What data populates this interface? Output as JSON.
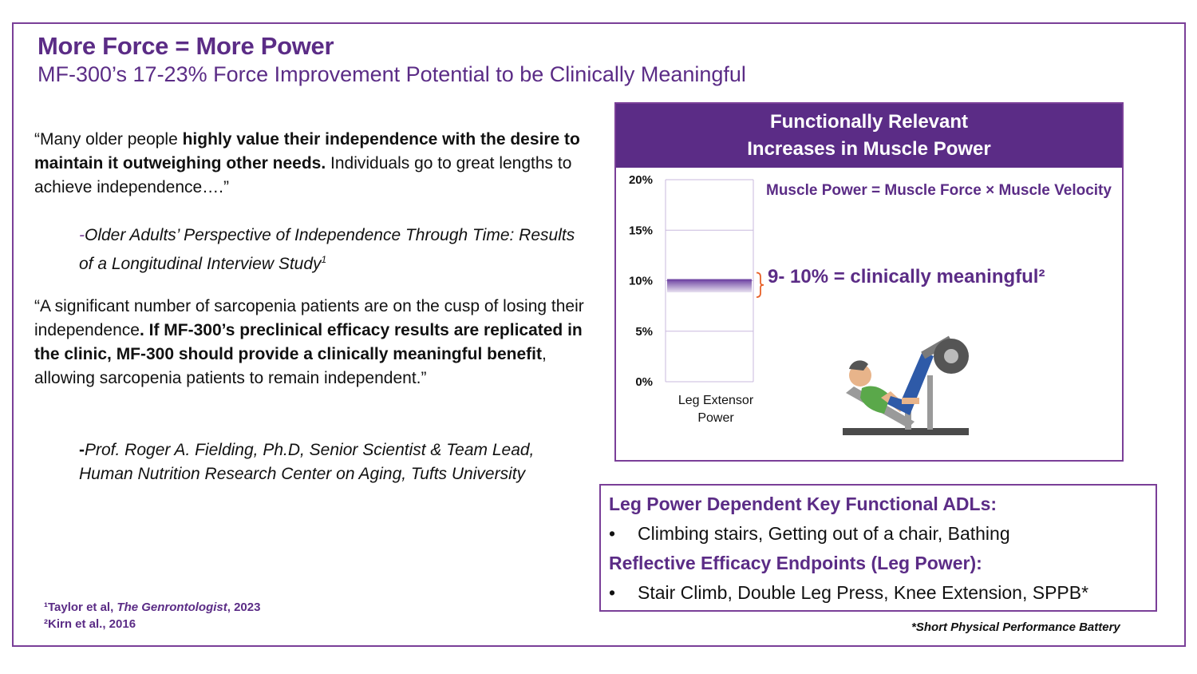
{
  "title": "More Force = More Power",
  "subtitle": "MF-300’s 17-23% Force Improvement Potential to be Clinically Meaningful",
  "quote1": {
    "part1": "“Many older people ",
    "bold": "highly value their independence with the desire to maintain it outweighing other needs.",
    "part2": " Individuals go to great lengths to achieve independence….”"
  },
  "cite1": {
    "dash": "-",
    "text": "Older Adults’ Perspective of Independence Through Time: Results of a Longitudinal Interview Study",
    "sup": "1"
  },
  "quote2": {
    "part1": "“A significant number of sarcopenia patients are on the cusp of losing their independence",
    "bold": ". If MF-300’s preclinical efficacy results are replicated in the clinic, MF-300 should provide a clinically meaningful benefit",
    "part2": ", allowing sarcopenia patients to remain independent.”"
  },
  "cite2": {
    "dash": "-",
    "text": "Prof. Roger A. Fielding, Ph.D, Senior Scientist  & Team Lead, Human Nutrition Research Center on Aging, Tufts University"
  },
  "footnotes": {
    "f1_prefix": "¹Taylor et al, ",
    "f1_journal": "The Genrontologist",
    "f1_suffix": ", 2023",
    "f2": "²Kirn et al., 2016"
  },
  "panel": {
    "header_line1": "Functionally Relevant",
    "header_line2": "Increases in Muscle Power",
    "formula": "Muscle Power = Muscle Force × Muscle Velocity",
    "meaningful_label": "9- 10% = clinically meaningful²"
  },
  "chart_data": {
    "type": "bar",
    "categories": [
      "Leg Extensor Power"
    ],
    "category_lines": [
      "Leg Extensor",
      "Power"
    ],
    "ylim": [
      0,
      20
    ],
    "yticks": [
      0,
      5,
      10,
      15,
      20
    ],
    "ytick_labels": [
      "0%",
      "5%",
      "10%",
      "15%",
      "20%"
    ],
    "grid": true,
    "highlight_band": {
      "from": 9,
      "to": 10,
      "color": "#6b3fa0"
    },
    "brace_color": "#e8622a",
    "title": "",
    "xlabel": "",
    "ylabel": ""
  },
  "adl": {
    "heading1": "Leg Power Dependent Key Functional ADLs:",
    "items1": [
      "Climbing stairs, Getting out of a chair, Bathing"
    ],
    "heading2": "Reflective Efficacy Endpoints (Leg Power):",
    "items2": [
      "Stair Climb, Double Leg Press, Knee Extension, SPPB*"
    ],
    "bullet": "•",
    "note": "*Short Physical Performance Battery"
  },
  "colors": {
    "brand_purple": "#5b2c86",
    "border_purple": "#7a3f98",
    "accent_orange": "#e8622a"
  },
  "icons": [
    "leg-press-icon"
  ]
}
